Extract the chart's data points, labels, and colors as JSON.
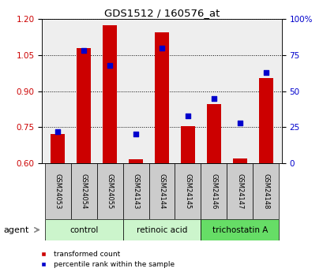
{
  "title": "GDS1512 / 160576_at",
  "samples": [
    "GSM24053",
    "GSM24054",
    "GSM24055",
    "GSM24143",
    "GSM24144",
    "GSM24145",
    "GSM24146",
    "GSM24147",
    "GSM24148"
  ],
  "red_values": [
    0.72,
    1.08,
    1.175,
    0.615,
    1.145,
    0.755,
    0.845,
    0.62,
    0.955
  ],
  "blue_values": [
    22,
    78,
    68,
    20,
    80,
    33,
    45,
    28,
    63
  ],
  "ylim_left": [
    0.6,
    1.2
  ],
  "ylim_right": [
    0,
    100
  ],
  "yticks_left": [
    0.6,
    0.75,
    0.9,
    1.05,
    1.2
  ],
  "yticks_right": [
    0,
    25,
    50,
    75,
    100
  ],
  "ytick_labels_right": [
    "0",
    "25",
    "50",
    "75",
    "100%"
  ],
  "groups": [
    {
      "label": "control",
      "indices": [
        0,
        1,
        2
      ],
      "color_light": "#ccf5cc",
      "color_dark": "#ccf5cc"
    },
    {
      "label": "retinoic acid",
      "indices": [
        3,
        4,
        5
      ],
      "color_light": "#ccf5cc",
      "color_dark": "#ccf5cc"
    },
    {
      "label": "trichostatin A",
      "indices": [
        6,
        7,
        8
      ],
      "color_light": "#66dd66",
      "color_dark": "#66dd66"
    }
  ],
  "bar_color": "#cc0000",
  "blue_color": "#0000cc",
  "bar_width": 0.55,
  "agent_label": "agent",
  "legend_red": "transformed count",
  "legend_blue": "percentile rank within the sample",
  "tick_label_color_left": "#cc0000",
  "tick_label_color_right": "#0000cc",
  "sample_bg": "#cccccc",
  "plot_bg": "#eeeeee"
}
